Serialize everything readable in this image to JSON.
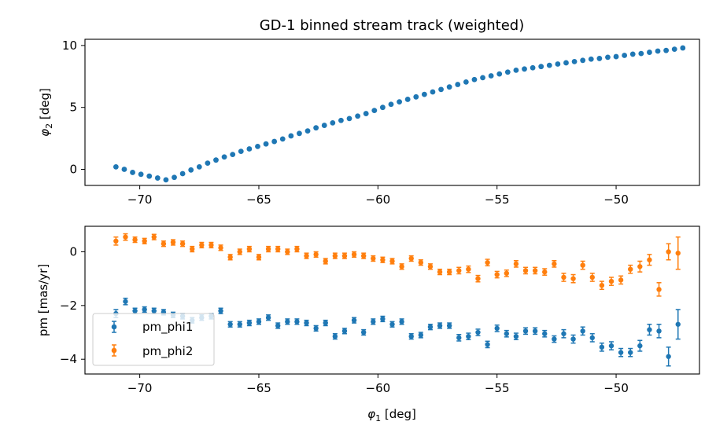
{
  "chart_data": [
    {
      "type": "scatter",
      "title": "GD-1 binned stream track (weighted)",
      "xlabel": "",
      "ylabel_symbol": "φ",
      "ylabel_sub": "2",
      "ylabel_unit": " [deg]",
      "xlim": [
        -72.3,
        -46.5
      ],
      "ylim": [
        -1.3,
        10.5
      ],
      "xticks": [
        -70,
        -65,
        -60,
        -55,
        -50
      ],
      "xtick_labels": [
        "−70",
        "−65",
        "−60",
        "−55",
        "−50"
      ],
      "yticks": [
        0,
        5,
        10
      ],
      "ytick_labels": [
        "0",
        "5",
        "10"
      ],
      "grid": false,
      "colors": {
        "phi2": "#1f77b4"
      },
      "series": [
        {
          "x": [
            -71.0,
            -70.65,
            -70.3,
            -69.95,
            -69.6,
            -69.25,
            -68.9,
            -68.55,
            -68.2,
            -67.85,
            -67.5,
            -67.15,
            -66.8,
            -66.45,
            -66.1,
            -65.75,
            -65.4,
            -65.05,
            -64.7,
            -64.35,
            -64.0,
            -63.65,
            -63.3,
            -62.95,
            -62.6,
            -62.25,
            -61.9,
            -61.55,
            -61.2,
            -60.85,
            -60.5,
            -60.15,
            -59.8,
            -59.45,
            -59.1,
            -58.75,
            -58.4,
            -58.05,
            -57.7,
            -57.35,
            -57.0,
            -56.65,
            -56.3,
            -55.95,
            -55.6,
            -55.25,
            -54.9,
            -54.55,
            -54.2,
            -53.85,
            -53.5,
            -53.15,
            -52.8,
            -52.45,
            -52.1,
            -51.75,
            -51.4,
            -51.05,
            -50.7,
            -50.35,
            -50.0,
            -49.65,
            -49.3,
            -48.95,
            -48.6,
            -48.25,
            -47.9,
            -47.55,
            -47.2
          ],
          "y": [
            0.2,
            0.0,
            -0.25,
            -0.4,
            -0.55,
            -0.7,
            -0.85,
            -0.65,
            -0.35,
            -0.05,
            0.2,
            0.5,
            0.75,
            1.0,
            1.2,
            1.45,
            1.65,
            1.85,
            2.05,
            2.25,
            2.45,
            2.7,
            2.9,
            3.1,
            3.35,
            3.55,
            3.75,
            3.95,
            4.1,
            4.3,
            4.5,
            4.75,
            5.0,
            5.25,
            5.45,
            5.65,
            5.85,
            6.05,
            6.25,
            6.45,
            6.65,
            6.85,
            7.05,
            7.25,
            7.4,
            7.55,
            7.7,
            7.85,
            8.0,
            8.1,
            8.2,
            8.3,
            8.4,
            8.5,
            8.6,
            8.7,
            8.8,
            8.9,
            8.95,
            9.05,
            9.1,
            9.2,
            9.3,
            9.35,
            9.45,
            9.55,
            9.6,
            9.7,
            9.8
          ]
        }
      ]
    },
    {
      "type": "scatter",
      "title": "",
      "xlabel_symbol": "φ",
      "xlabel_sub": "1",
      "xlabel_unit": " [deg]",
      "ylabel": "pm [mas/yr]",
      "xlim": [
        -72.3,
        -46.5
      ],
      "ylim": [
        -4.55,
        0.95
      ],
      "xticks": [
        -70,
        -65,
        -60,
        -55,
        -50
      ],
      "xtick_labels": [
        "−70",
        "−65",
        "−60",
        "−55",
        "−50"
      ],
      "yticks": [
        0,
        -2,
        -4
      ],
      "ytick_labels": [
        "0",
        "−2",
        "−4"
      ],
      "grid": false,
      "legend": "lower-left",
      "series": [
        {
          "name": "pm_phi1",
          "color": "#1f77b4",
          "x": [
            -71.0,
            -70.6,
            -70.2,
            -69.8,
            -69.4,
            -69.0,
            -68.6,
            -68.2,
            -67.8,
            -67.4,
            -67.0,
            -66.6,
            -66.2,
            -65.8,
            -65.4,
            -65.0,
            -64.6,
            -64.2,
            -63.8,
            -63.4,
            -63.0,
            -62.6,
            -62.2,
            -61.8,
            -61.4,
            -61.0,
            -60.6,
            -60.2,
            -59.8,
            -59.4,
            -59.0,
            -58.6,
            -58.2,
            -57.8,
            -57.4,
            -57.0,
            -56.6,
            -56.2,
            -55.8,
            -55.4,
            -55.0,
            -54.6,
            -54.2,
            -53.8,
            -53.4,
            -53.0,
            -52.6,
            -52.2,
            -51.8,
            -51.4,
            -51.0,
            -50.6,
            -50.2,
            -49.8,
            -49.4,
            -49.0,
            -48.6,
            -48.2,
            -47.8,
            -47.4
          ],
          "y": [
            -2.3,
            -1.85,
            -2.2,
            -2.15,
            -2.2,
            -2.25,
            -2.35,
            -2.4,
            -2.55,
            -2.45,
            -2.4,
            -2.2,
            -2.7,
            -2.7,
            -2.65,
            -2.6,
            -2.45,
            -2.75,
            -2.6,
            -2.6,
            -2.65,
            -2.85,
            -2.65,
            -3.15,
            -2.95,
            -2.55,
            -3.0,
            -2.6,
            -2.5,
            -2.7,
            -2.6,
            -3.15,
            -3.1,
            -2.8,
            -2.75,
            -2.75,
            -3.2,
            -3.15,
            -3.0,
            -3.45,
            -2.85,
            -3.05,
            -3.15,
            -2.95,
            -2.95,
            -3.05,
            -3.25,
            -3.05,
            -3.25,
            -2.95,
            -3.2,
            -3.55,
            -3.5,
            -3.75,
            -3.75,
            -3.5,
            -2.9,
            -2.95,
            -3.9,
            -2.7
          ],
          "err": [
            0.15,
            0.12,
            0.1,
            0.1,
            0.1,
            0.1,
            0.1,
            0.1,
            0.1,
            0.1,
            0.1,
            0.1,
            0.1,
            0.1,
            0.1,
            0.1,
            0.1,
            0.1,
            0.1,
            0.1,
            0.1,
            0.1,
            0.1,
            0.1,
            0.1,
            0.1,
            0.1,
            0.1,
            0.1,
            0.1,
            0.1,
            0.1,
            0.1,
            0.1,
            0.1,
            0.1,
            0.12,
            0.12,
            0.12,
            0.12,
            0.12,
            0.12,
            0.12,
            0.12,
            0.12,
            0.12,
            0.12,
            0.15,
            0.15,
            0.15,
            0.15,
            0.15,
            0.15,
            0.15,
            0.15,
            0.2,
            0.2,
            0.25,
            0.35,
            0.55
          ]
        },
        {
          "name": "pm_phi2",
          "color": "#ff7f0e",
          "x": [
            -71.0,
            -70.6,
            -70.2,
            -69.8,
            -69.4,
            -69.0,
            -68.6,
            -68.2,
            -67.8,
            -67.4,
            -67.0,
            -66.6,
            -66.2,
            -65.8,
            -65.4,
            -65.0,
            -64.6,
            -64.2,
            -63.8,
            -63.4,
            -63.0,
            -62.6,
            -62.2,
            -61.8,
            -61.4,
            -61.0,
            -60.6,
            -60.2,
            -59.8,
            -59.4,
            -59.0,
            -58.6,
            -58.2,
            -57.8,
            -57.4,
            -57.0,
            -56.6,
            -56.2,
            -55.8,
            -55.4,
            -55.0,
            -54.6,
            -54.2,
            -53.8,
            -53.4,
            -53.0,
            -52.6,
            -52.2,
            -51.8,
            -51.4,
            -51.0,
            -50.6,
            -50.2,
            -49.8,
            -49.4,
            -49.0,
            -48.6,
            -48.2,
            -47.8,
            -47.4
          ],
          "y": [
            0.4,
            0.55,
            0.45,
            0.4,
            0.55,
            0.3,
            0.35,
            0.3,
            0.1,
            0.25,
            0.25,
            0.15,
            -0.2,
            0.0,
            0.1,
            -0.2,
            0.1,
            0.1,
            0.0,
            0.1,
            -0.15,
            -0.1,
            -0.35,
            -0.15,
            -0.15,
            -0.1,
            -0.15,
            -0.25,
            -0.3,
            -0.35,
            -0.55,
            -0.25,
            -0.4,
            -0.55,
            -0.75,
            -0.75,
            -0.7,
            -0.65,
            -1.0,
            -0.4,
            -0.85,
            -0.8,
            -0.45,
            -0.7,
            -0.7,
            -0.75,
            -0.45,
            -0.95,
            -1.0,
            -0.5,
            -0.95,
            -1.25,
            -1.1,
            -1.05,
            -0.65,
            -0.55,
            -0.3,
            -1.4,
            0.0,
            -0.05
          ],
          "err": [
            0.15,
            0.12,
            0.1,
            0.1,
            0.1,
            0.1,
            0.1,
            0.1,
            0.1,
            0.1,
            0.1,
            0.1,
            0.1,
            0.1,
            0.1,
            0.1,
            0.1,
            0.1,
            0.1,
            0.1,
            0.1,
            0.1,
            0.1,
            0.1,
            0.1,
            0.1,
            0.1,
            0.1,
            0.1,
            0.1,
            0.1,
            0.1,
            0.1,
            0.1,
            0.1,
            0.1,
            0.12,
            0.12,
            0.12,
            0.12,
            0.12,
            0.12,
            0.12,
            0.12,
            0.12,
            0.12,
            0.12,
            0.15,
            0.15,
            0.15,
            0.15,
            0.15,
            0.15,
            0.15,
            0.15,
            0.2,
            0.2,
            0.25,
            0.3,
            0.6
          ]
        }
      ]
    }
  ]
}
